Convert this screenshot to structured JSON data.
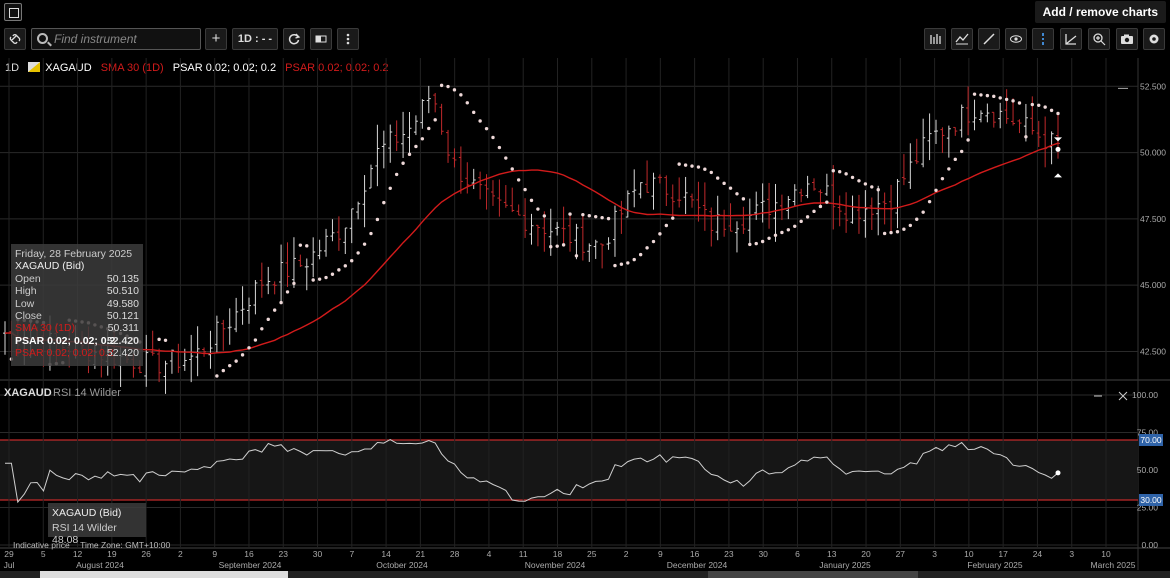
{
  "header": {
    "add_remove": "Add / remove charts"
  },
  "toolbar": {
    "search_placeholder": "Find instrument",
    "timeframe": "1D : - -",
    "plus": "+"
  },
  "legend": {
    "period": "1D",
    "symbol": "XAGAUD",
    "sma": "SMA 30 (1D)",
    "psar_white": "PSAR 0.02; 0.02; 0.2",
    "psar_red": "PSAR 0.02; 0.02; 0.2"
  },
  "tooltip": {
    "date": "Friday, 28 February 2025",
    "instrument": "XAGAUD (Bid)",
    "rows": [
      {
        "label": "Open",
        "value": "50.135"
      },
      {
        "label": "High",
        "value": "50.510"
      },
      {
        "label": "Low",
        "value": "49.580"
      },
      {
        "label": "Close",
        "value": "50.121"
      },
      {
        "label": "SMA 30 (1D)",
        "value": "50.311"
      },
      {
        "label": "PSAR 0.02; 0.02; 0.2",
        "value": "52.420"
      },
      {
        "label": "PSAR 0.02; 0.02; 0.2",
        "value": "52.420"
      }
    ]
  },
  "rsi": {
    "title_symbol": "XAGAUD",
    "title": "RSI 14 Wilder",
    "tip_instrument": "XAGAUD (Bid)",
    "tip_value": "RSI 14 Wilder 48.08",
    "levels": {
      "upper": "70.00",
      "lower": "30.00"
    }
  },
  "footer": {
    "indicative": "Indicative price",
    "timezone": "Time Zone: GMT+10:00"
  },
  "colors": {
    "sma": "#d21b1b",
    "bear": "#c0292b",
    "bull": "#d8d8d8",
    "bg": "#000000"
  },
  "chart_data": [
    {
      "type": "candlestick",
      "title": "XAGAUD",
      "ylim": [
        41.5,
        53.0
      ],
      "y_ticks": [
        "52.500",
        "50.000",
        "47.500",
        "45.000",
        "42.500"
      ],
      "x_day_labels": [
        "29",
        "5",
        "12",
        "19",
        "26",
        "2",
        "9",
        "16",
        "23",
        "30",
        "7",
        "14",
        "21",
        "28",
        "4",
        "11",
        "18",
        "25",
        "2",
        "9",
        "16",
        "23",
        "30",
        "6",
        "13",
        "20",
        "27",
        "3",
        "10",
        "17",
        "24",
        "3",
        "10"
      ],
      "x_month_labels": [
        "Jul",
        "August 2024",
        "September 2024",
        "October 2024",
        "November 2024",
        "December 2024",
        "January 2025",
        "February 2025",
        "March 2025"
      ],
      "last_close": 50.121
    },
    {
      "type": "line",
      "title": "RSI 14 Wilder",
      "ylim": [
        0,
        100
      ],
      "y_ticks": [
        "100.00",
        "75.00",
        "50.00",
        "25.00",
        "0.00"
      ],
      "levels": [
        70,
        30
      ],
      "last_value": 48.08
    }
  ]
}
